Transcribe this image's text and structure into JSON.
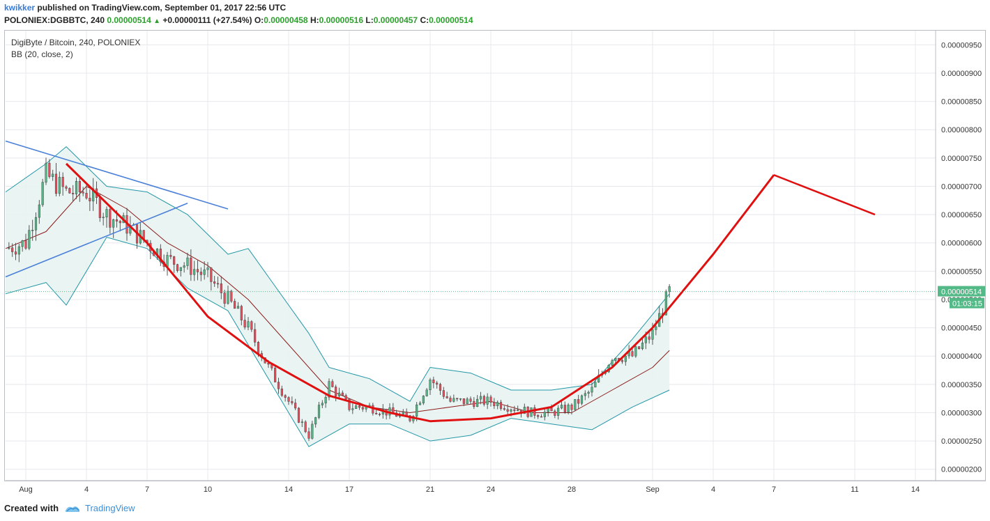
{
  "header": {
    "author": "kwikker",
    "published": "published on TradingView.com, September 01, 2017 22:56 UTC",
    "symbol": "POLONIEX:DGBBTC, 240",
    "last": "0.00000514",
    "change": "+0.00000111 (+27.54%)",
    "o_label": "O:",
    "o": "0.00000458",
    "h_label": "H:",
    "h": "0.00000516",
    "l_label": "L:",
    "l": "0.00000457",
    "c_label": "C:",
    "c": "0.00000514"
  },
  "pane": {
    "title": "DigiByte / Bitcoin, 240, POLONIEX",
    "indicator": "BB (20, close, 2)"
  },
  "footer": {
    "created_with": "Created with",
    "brand": "TradingView"
  },
  "chart_data": {
    "type": "candlestick",
    "title": "DigiByte / Bitcoin, 240, POLONIEX",
    "ylim": [
      1.8e-06,
      9.75e-06
    ],
    "y_ticks": [
      "0.00000950",
      "0.00000900",
      "0.00000850",
      "0.00000800",
      "0.00000750",
      "0.00000700",
      "0.00000650",
      "0.00000600",
      "0.00000550",
      "0.00000500",
      "0.00000450",
      "0.00000400",
      "0.00000350",
      "0.00000300",
      "0.00000250",
      "0.00000200"
    ],
    "y_tick_values": [
      9.5e-06,
      9e-06,
      8.5e-06,
      8e-06,
      7.5e-06,
      7e-06,
      6.5e-06,
      6e-06,
      5.5e-06,
      5e-06,
      4.5e-06,
      4e-06,
      3.5e-06,
      3e-06,
      2.5e-06,
      2e-06
    ],
    "x_start": "2017-07-31",
    "x_end": "2017-09-15",
    "x_ticks": [
      {
        "label": "Aug",
        "date": "2017-08-01"
      },
      {
        "label": "4",
        "date": "2017-08-04"
      },
      {
        "label": "7",
        "date": "2017-08-07"
      },
      {
        "label": "10",
        "date": "2017-08-10"
      },
      {
        "label": "14",
        "date": "2017-08-14"
      },
      {
        "label": "17",
        "date": "2017-08-17"
      },
      {
        "label": "21",
        "date": "2017-08-21"
      },
      {
        "label": "24",
        "date": "2017-08-24"
      },
      {
        "label": "28",
        "date": "2017-08-28"
      },
      {
        "label": "Sep",
        "date": "2017-09-01"
      },
      {
        "label": "4",
        "date": "2017-09-04"
      },
      {
        "label": "7",
        "date": "2017-09-07"
      },
      {
        "label": "11",
        "date": "2017-09-11"
      },
      {
        "label": "14",
        "date": "2017-09-14"
      }
    ],
    "last_price_label": "0.00000514",
    "countdown_label": "01:03:15",
    "close_path": [
      {
        "date": "2017-07-31",
        "close": 5.9e-06
      },
      {
        "date": "2017-08-01",
        "close": 6e-06
      },
      {
        "date": "2017-08-02",
        "close": 7.2e-06
      },
      {
        "date": "2017-08-03",
        "close": 6.9e-06
      },
      {
        "date": "2017-08-04",
        "close": 6.9e-06
      },
      {
        "date": "2017-08-05",
        "close": 6.5e-06
      },
      {
        "date": "2017-08-06",
        "close": 6.3e-06
      },
      {
        "date": "2017-08-07",
        "close": 6e-06
      },
      {
        "date": "2017-08-08",
        "close": 5.7e-06
      },
      {
        "date": "2017-08-09",
        "close": 5.6e-06
      },
      {
        "date": "2017-08-10",
        "close": 5.4e-06
      },
      {
        "date": "2017-08-11",
        "close": 5e-06
      },
      {
        "date": "2017-08-12",
        "close": 4.5e-06
      },
      {
        "date": "2017-08-13",
        "close": 3.8e-06
      },
      {
        "date": "2017-08-14",
        "close": 3.2e-06
      },
      {
        "date": "2017-08-15",
        "close": 2.6e-06
      },
      {
        "date": "2017-08-16",
        "close": 3.5e-06
      },
      {
        "date": "2017-08-17",
        "close": 3.1e-06
      },
      {
        "date": "2017-08-18",
        "close": 3.1e-06
      },
      {
        "date": "2017-08-19",
        "close": 3e-06
      },
      {
        "date": "2017-08-20",
        "close": 2.9e-06
      },
      {
        "date": "2017-08-21",
        "close": 3.6e-06
      },
      {
        "date": "2017-08-22",
        "close": 3.2e-06
      },
      {
        "date": "2017-08-23",
        "close": 3.2e-06
      },
      {
        "date": "2017-08-24",
        "close": 3.2e-06
      },
      {
        "date": "2017-08-25",
        "close": 3.1e-06
      },
      {
        "date": "2017-08-26",
        "close": 3e-06
      },
      {
        "date": "2017-08-27",
        "close": 3e-06
      },
      {
        "date": "2017-08-28",
        "close": 3.1e-06
      },
      {
        "date": "2017-08-29",
        "close": 3.4e-06
      },
      {
        "date": "2017-08-30",
        "close": 4e-06
      },
      {
        "date": "2017-08-31",
        "close": 4e-06
      },
      {
        "date": "2017-09-01",
        "close": 4.4e-06
      },
      {
        "date": "2017-09-01T20:00",
        "close": 5.14e-06
      }
    ],
    "bb_upper": [
      {
        "date": "2017-07-31",
        "v": 6.9e-06
      },
      {
        "date": "2017-08-02",
        "v": 7.4e-06
      },
      {
        "date": "2017-08-03",
        "v": 7.7e-06
      },
      {
        "date": "2017-08-05",
        "v": 7e-06
      },
      {
        "date": "2017-08-07",
        "v": 6.9e-06
      },
      {
        "date": "2017-08-09",
        "v": 6.5e-06
      },
      {
        "date": "2017-08-11",
        "v": 5.8e-06
      },
      {
        "date": "2017-08-12",
        "v": 5.9e-06
      },
      {
        "date": "2017-08-13",
        "v": 5.4e-06
      },
      {
        "date": "2017-08-15",
        "v": 4.4e-06
      },
      {
        "date": "2017-08-16",
        "v": 3.8e-06
      },
      {
        "date": "2017-08-18",
        "v": 3.6e-06
      },
      {
        "date": "2017-08-20",
        "v": 3.2e-06
      },
      {
        "date": "2017-08-21",
        "v": 3.8e-06
      },
      {
        "date": "2017-08-23",
        "v": 3.7e-06
      },
      {
        "date": "2017-08-25",
        "v": 3.4e-06
      },
      {
        "date": "2017-08-27",
        "v": 3.4e-06
      },
      {
        "date": "2017-08-29",
        "v": 3.5e-06
      },
      {
        "date": "2017-08-31",
        "v": 4.3e-06
      },
      {
        "date": "2017-09-01T20:00",
        "v": 5.1e-06
      }
    ],
    "bb_middle": [
      {
        "date": "2017-07-31",
        "v": 5.9e-06
      },
      {
        "date": "2017-08-02",
        "v": 6.2e-06
      },
      {
        "date": "2017-08-03",
        "v": 6.6e-06
      },
      {
        "date": "2017-08-04",
        "v": 7e-06
      },
      {
        "date": "2017-08-06",
        "v": 6.6e-06
      },
      {
        "date": "2017-08-08",
        "v": 6e-06
      },
      {
        "date": "2017-08-10",
        "v": 5.6e-06
      },
      {
        "date": "2017-08-12",
        "v": 5e-06
      },
      {
        "date": "2017-08-14",
        "v": 4.2e-06
      },
      {
        "date": "2017-08-16",
        "v": 3.4e-06
      },
      {
        "date": "2017-08-18",
        "v": 3.1e-06
      },
      {
        "date": "2017-08-20",
        "v": 3e-06
      },
      {
        "date": "2017-08-22",
        "v": 3.1e-06
      },
      {
        "date": "2017-08-24",
        "v": 3.2e-06
      },
      {
        "date": "2017-08-26",
        "v": 3e-06
      },
      {
        "date": "2017-08-28",
        "v": 3e-06
      },
      {
        "date": "2017-08-30",
        "v": 3.4e-06
      },
      {
        "date": "2017-09-01",
        "v": 3.8e-06
      },
      {
        "date": "2017-09-01T20:00",
        "v": 4.1e-06
      }
    ],
    "bb_lower": [
      {
        "date": "2017-07-31",
        "v": 5.1e-06
      },
      {
        "date": "2017-08-02",
        "v": 5.3e-06
      },
      {
        "date": "2017-08-03",
        "v": 4.9e-06
      },
      {
        "date": "2017-08-05",
        "v": 6.1e-06
      },
      {
        "date": "2017-08-07",
        "v": 5.9e-06
      },
      {
        "date": "2017-08-09",
        "v": 5.2e-06
      },
      {
        "date": "2017-08-11",
        "v": 4.8e-06
      },
      {
        "date": "2017-08-13",
        "v": 3.6e-06
      },
      {
        "date": "2017-08-15",
        "v": 2.4e-06
      },
      {
        "date": "2017-08-17",
        "v": 2.8e-06
      },
      {
        "date": "2017-08-19",
        "v": 2.8e-06
      },
      {
        "date": "2017-08-21",
        "v": 2.5e-06
      },
      {
        "date": "2017-08-23",
        "v": 2.6e-06
      },
      {
        "date": "2017-08-25",
        "v": 2.9e-06
      },
      {
        "date": "2017-08-27",
        "v": 2.8e-06
      },
      {
        "date": "2017-08-29",
        "v": 2.7e-06
      },
      {
        "date": "2017-08-31",
        "v": 3.1e-06
      },
      {
        "date": "2017-09-01T20:00",
        "v": 3.4e-06
      }
    ],
    "trendlines_blue": [
      [
        {
          "date": "2017-07-31",
          "v": 7.8e-06
        },
        {
          "date": "2017-08-11",
          "v": 6.6e-06
        }
      ],
      [
        {
          "date": "2017-07-31",
          "v": 5.4e-06
        },
        {
          "date": "2017-08-09",
          "v": 6.7e-06
        }
      ]
    ],
    "projection_red": {
      "curve": [
        {
          "date": "2017-08-03",
          "v": 7.4e-06
        },
        {
          "date": "2017-08-07",
          "v": 6e-06
        },
        {
          "date": "2017-08-10",
          "v": 4.7e-06
        },
        {
          "date": "2017-08-13",
          "v": 3.9e-06
        },
        {
          "date": "2017-08-16",
          "v": 3.3e-06
        },
        {
          "date": "2017-08-19",
          "v": 3e-06
        },
        {
          "date": "2017-08-21",
          "v": 2.85e-06
        },
        {
          "date": "2017-08-24",
          "v": 2.9e-06
        },
        {
          "date": "2017-08-27",
          "v": 3.1e-06
        },
        {
          "date": "2017-08-30",
          "v": 3.8e-06
        },
        {
          "date": "2017-09-01",
          "v": 4.5e-06
        },
        {
          "date": "2017-09-04",
          "v": 5.8e-06
        },
        {
          "date": "2017-09-07",
          "v": 7.2e-06
        }
      ],
      "tail": [
        {
          "date": "2017-09-07",
          "v": 7.2e-06
        },
        {
          "date": "2017-09-12",
          "v": 6.5e-06
        }
      ]
    },
    "colors": {
      "up": "#53b987",
      "down": "#eb4d5c",
      "bb_band": "#2196a6",
      "bb_basis": "#8b1a1a",
      "bb_fill": "#e8f4f2",
      "trend": "#4a7fd8",
      "projection": "#e01010",
      "last_price": "#53b987",
      "grid": "#e6e8ec"
    }
  }
}
